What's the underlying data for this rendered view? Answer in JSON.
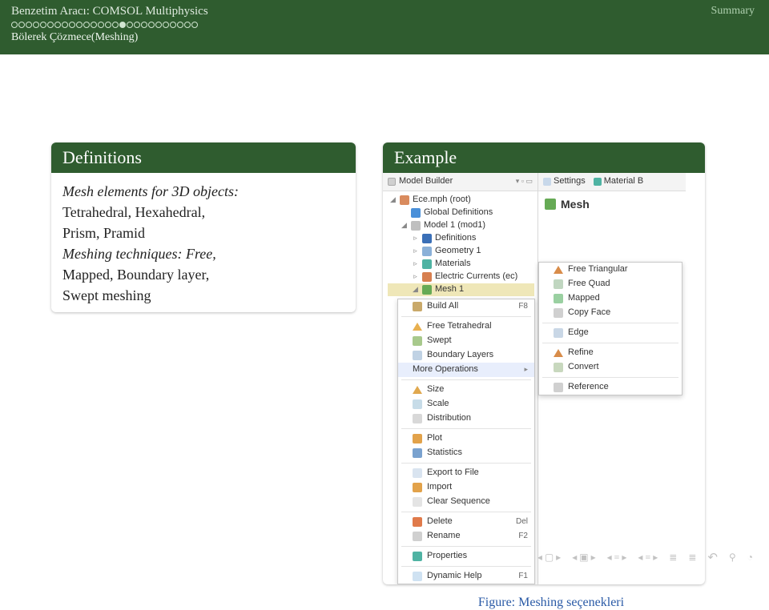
{
  "header": {
    "title": "Benzetim Aracı: COMSOL Multiphysics",
    "summary": "Summary",
    "subtitle": "Bölerek Çözmece(Meshing)",
    "progress": {
      "total": 26,
      "current": 15
    }
  },
  "definitions": {
    "title": "Definitions",
    "line1": "Mesh elements for 3D objects:",
    "line2": "Tetrahedral, Hexahedral,",
    "line3": "Prism, Pramid",
    "line4": "Meshing techniques: Free,",
    "line5": "Mapped, Boundary layer,",
    "line6": "Swept meshing"
  },
  "example": {
    "title": "Example",
    "caption_label": "Figure:",
    "caption_text": "Meshing seçenekleri"
  },
  "comsol": {
    "left_panel_title": "Model Builder",
    "right_panel_settings": "Settings",
    "right_panel_material": "Material B",
    "right_panel_mesh": "Mesh",
    "tree": {
      "root": "Ece.mph (root)",
      "globaldef": "Global Definitions",
      "model1": "Model 1 (mod1)",
      "defs": "Definitions",
      "geom": "Geometry 1",
      "materials": "Materials",
      "ec": "Electric Currents (ec)",
      "mesh1": "Mesh 1"
    },
    "menu": {
      "build_all": "Build All",
      "build_all_sc": "F8",
      "free_tet": "Free Tetrahedral",
      "swept": "Swept",
      "boundary_layers": "Boundary Layers",
      "more_ops": "More Operations",
      "size": "Size",
      "scale": "Scale",
      "distribution": "Distribution",
      "plot": "Plot",
      "statistics": "Statistics",
      "export": "Export to File",
      "import": "Import",
      "clear": "Clear Sequence",
      "delete": "Delete",
      "delete_sc": "Del",
      "rename": "Rename",
      "rename_sc": "F2",
      "properties": "Properties",
      "dynhelp": "Dynamic Help",
      "dynhelp_sc": "F1"
    },
    "submenu": {
      "free_tri": "Free Triangular",
      "free_quad": "Free Quad",
      "mapped": "Mapped",
      "copy_face": "Copy Face",
      "edge": "Edge",
      "refine": "Refine",
      "convert": "Convert",
      "reference": "Reference"
    }
  },
  "colors": {
    "header_bg": "#2f5c2f",
    "accent_blue": "#2a5aa6"
  }
}
